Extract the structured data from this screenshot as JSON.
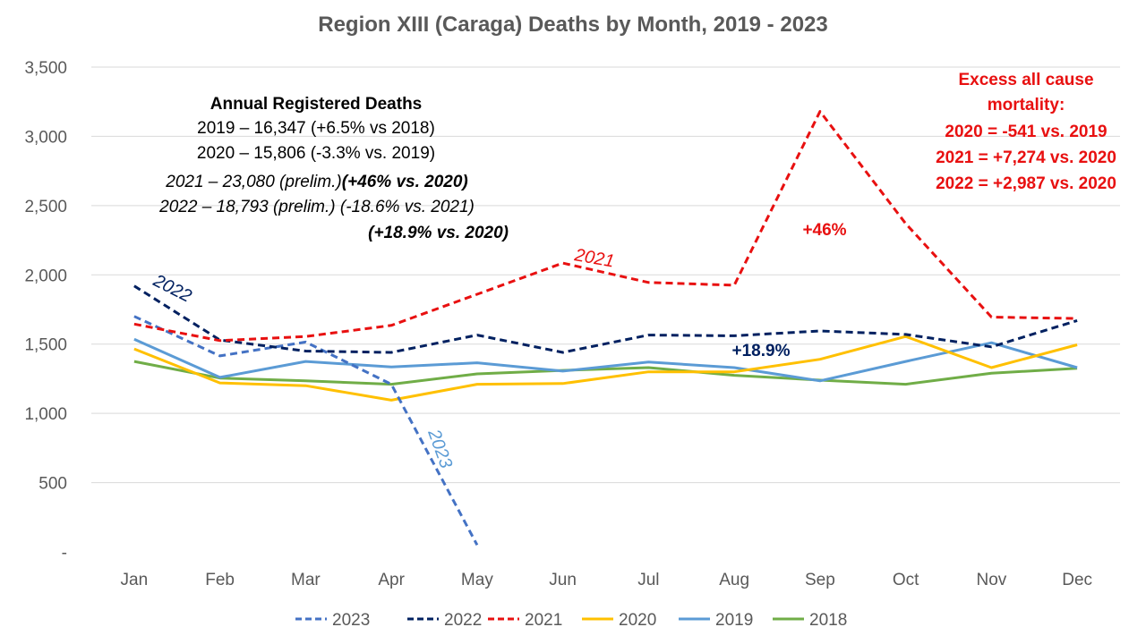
{
  "chart_data": {
    "type": "line",
    "title": "Region XIII (Caraga) Deaths by Month, 2019 - 2023",
    "xlabel": "",
    "ylabel": "",
    "categories": [
      "Jan",
      "Feb",
      "Mar",
      "Apr",
      "May",
      "Jun",
      "Jul",
      "Aug",
      "Sep",
      "Oct",
      "Nov",
      "Dec"
    ],
    "ylim": [
      0,
      3500
    ],
    "yticks": [
      {
        "value": 0,
        "label": "-"
      },
      {
        "value": 500,
        "label": "500"
      },
      {
        "value": 1000,
        "label": "1,000"
      },
      {
        "value": 1500,
        "label": "1,500"
      },
      {
        "value": 2000,
        "label": "2,000"
      },
      {
        "value": 2500,
        "label": "2,500"
      },
      {
        "value": 3000,
        "label": "3,000"
      },
      {
        "value": 3500,
        "label": "3,500"
      }
    ],
    "grid": true,
    "legend_position": "bottom",
    "series": [
      {
        "name": "2023",
        "color": "#4472C4",
        "dashed": true,
        "values": [
          1700,
          1415,
          1515,
          1210,
          50,
          null,
          null,
          null,
          null,
          null,
          null,
          null
        ]
      },
      {
        "name": "2022",
        "color": "#002060",
        "dashed": true,
        "values": [
          1920,
          1530,
          1450,
          1440,
          1565,
          1440,
          1565,
          1560,
          1595,
          1570,
          1480,
          1670
        ]
      },
      {
        "name": "2021",
        "color": "#E81010",
        "dashed": true,
        "values": [
          1645,
          1525,
          1555,
          1635,
          1860,
          2085,
          1945,
          1925,
          3180,
          2370,
          1695,
          1685
        ]
      },
      {
        "name": "2020",
        "color": "#FFC000",
        "dashed": false,
        "values": [
          1465,
          1220,
          1200,
          1095,
          1210,
          1215,
          1300,
          1300,
          1390,
          1555,
          1330,
          1495
        ]
      },
      {
        "name": "2019",
        "color": "#5B9BD5",
        "dashed": false,
        "values": [
          1535,
          1260,
          1375,
          1335,
          1365,
          1305,
          1370,
          1330,
          1235,
          1375,
          1510,
          1330
        ]
      },
      {
        "name": "2018",
        "color": "#70AD47",
        "dashed": false,
        "values": [
          1375,
          1255,
          1235,
          1210,
          1285,
          1310,
          1330,
          1275,
          1240,
          1210,
          1290,
          1325
        ]
      }
    ],
    "annotations": {
      "box_title": "Annual Registered Deaths",
      "box_line1": "2019 – 16,347 (+6.5% vs 2018)",
      "box_line2": "2020 – 15,806 (-3.3% vs. 2019)",
      "box_line3a": "2021 – 23,080 (prelim.)",
      "box_line3b": "(+46% vs. 2020)",
      "box_line4": "2022 – 18,793 (prelim.) (-18.6% vs. 2021)",
      "box_line5": "(+18.9% vs. 2020)",
      "excess_title1": "Excess all cause",
      "excess_title2": "mortality:",
      "excess_line1": "2020 = -541 vs. 2019",
      "excess_line2": "2021 = +7,274 vs. 2020",
      "excess_line3": "2022 = +2,987 vs. 2020",
      "label_2021": "2021",
      "label_2022": "2022",
      "label_2023": "2023",
      "pct_2021": "+46%",
      "pct_2022": "+18.9%"
    }
  }
}
